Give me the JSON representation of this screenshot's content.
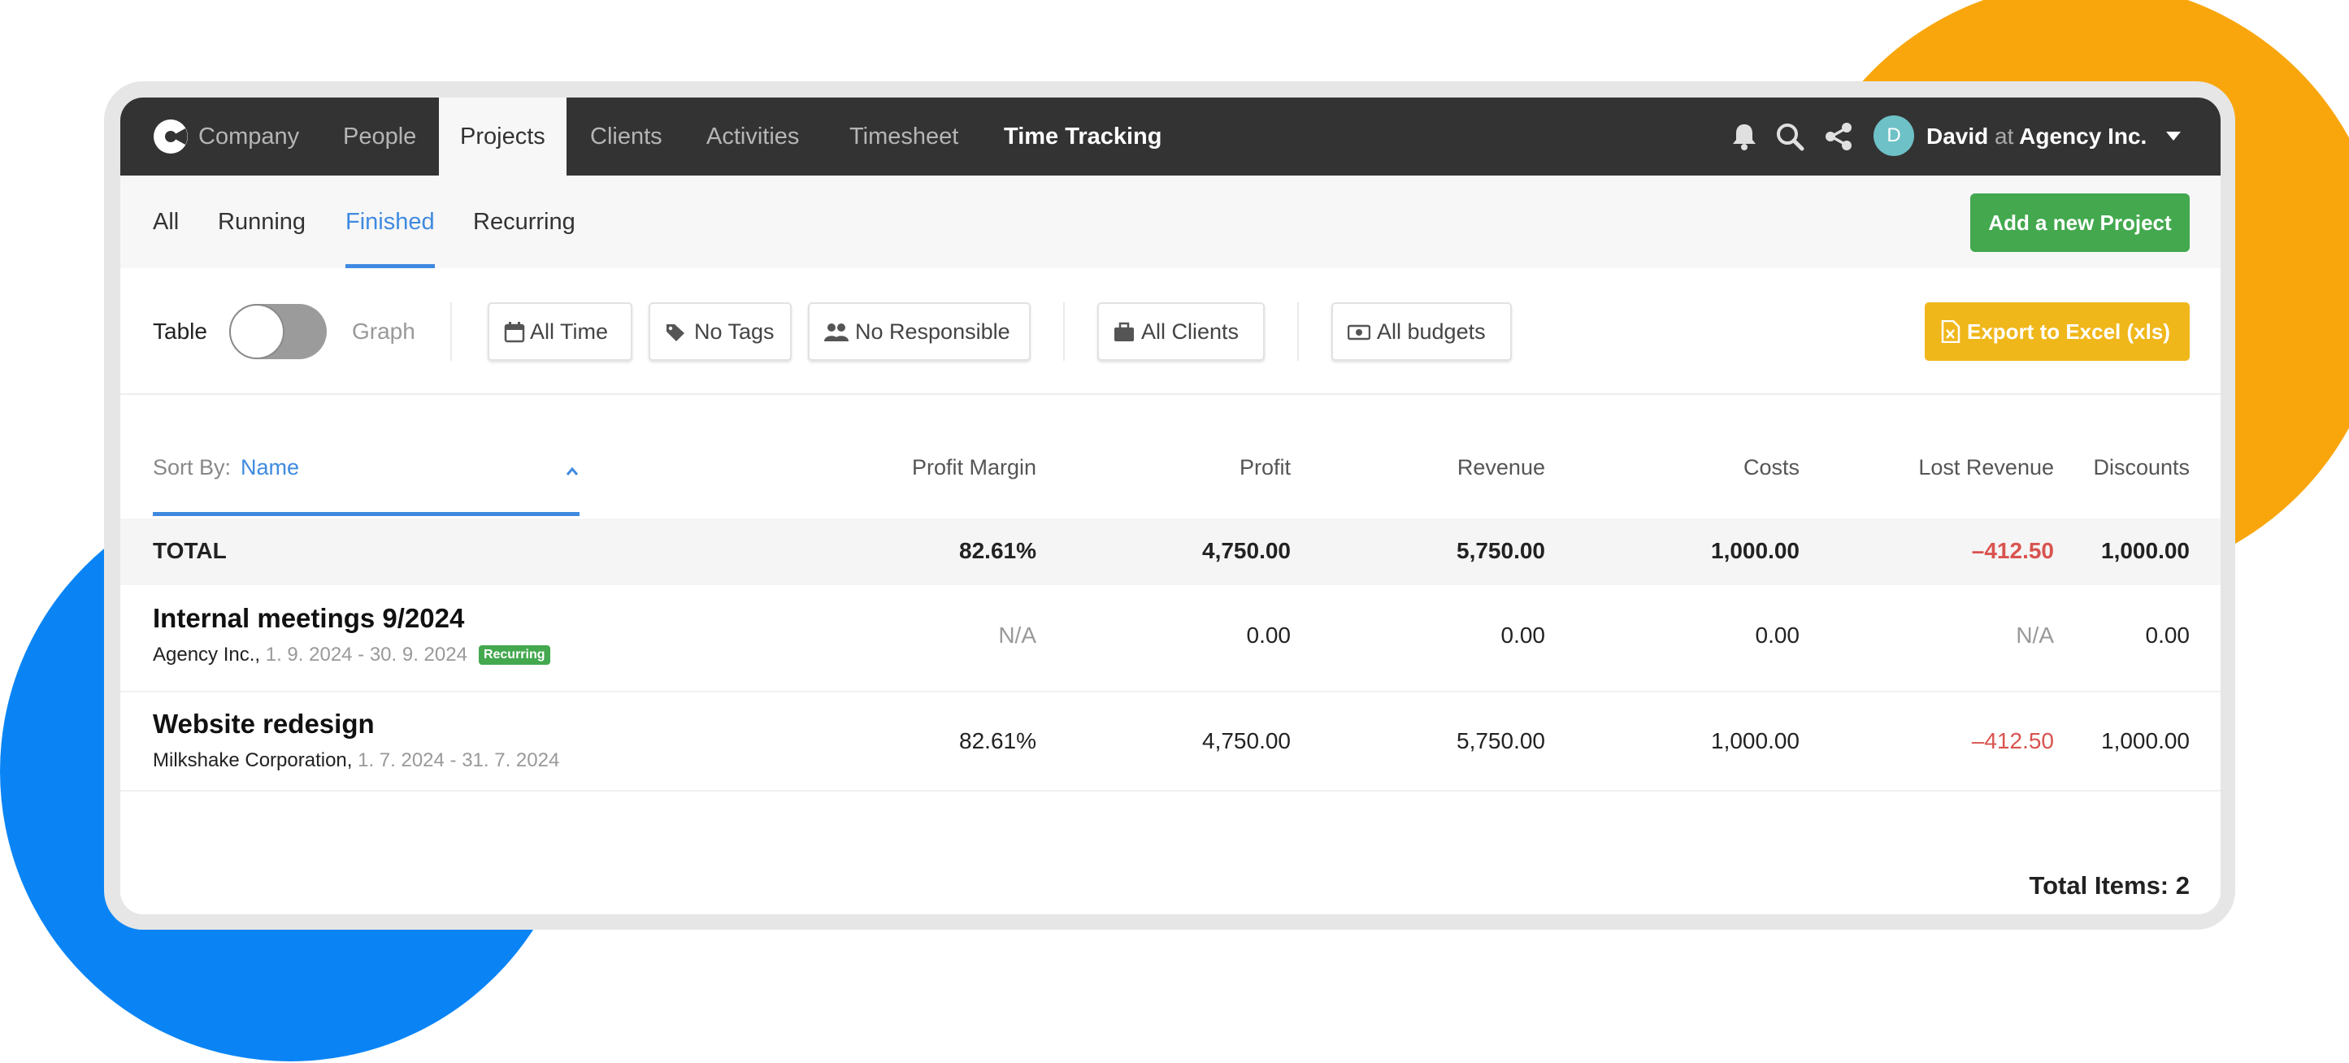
{
  "nav": {
    "items": [
      "Company",
      "People",
      "Projects",
      "Clients",
      "Activities",
      "Timesheet",
      "Time Tracking"
    ],
    "active": "Projects",
    "user": {
      "initial": "D",
      "name": "David",
      "at": "at",
      "org": "Agency Inc."
    }
  },
  "tabs": {
    "items": [
      "All",
      "Running",
      "Finished",
      "Recurring"
    ],
    "active": "Finished",
    "add_button": "Add a new Project"
  },
  "filters": {
    "view_left": "Table",
    "view_right": "Graph",
    "time": "All Time",
    "tags": "No Tags",
    "responsible": "No Responsible",
    "clients": "All Clients",
    "budgets": "All budgets",
    "export": "Export to Excel (xls)"
  },
  "table": {
    "sort_label": "Sort By:",
    "sort_value": "Name",
    "columns": [
      "Profit Margin",
      "Profit",
      "Revenue",
      "Costs",
      "Lost Revenue",
      "Discounts"
    ],
    "total": {
      "label": "TOTAL",
      "values": [
        "82.61%",
        "4,750.00",
        "5,750.00",
        "1,000.00",
        "–412.50",
        "1,000.00"
      ]
    },
    "rows": [
      {
        "name": "Internal meetings 9/2024",
        "client": "Agency Inc.,",
        "dates": "1. 9. 2024 - 30. 9. 2024",
        "badge": "Recurring",
        "values": [
          "N/A",
          "0.00",
          "0.00",
          "0.00",
          "N/A",
          "0.00"
        ]
      },
      {
        "name": "Website redesign",
        "client": "Milkshake Corporation,",
        "dates": "1. 7. 2024 - 31. 7. 2024",
        "badge": "",
        "values": [
          "82.61%",
          "4,750.00",
          "5,750.00",
          "1,000.00",
          "–412.50",
          "1,000.00"
        ]
      }
    ],
    "total_items": "Total Items: 2"
  },
  "colors": {
    "accent": "#3f8ae0",
    "green": "#43a84e",
    "yellow": "#f0b71b",
    "negative": "#d9534f",
    "nav_bg": "#333333",
    "bg_orange": "#f9a60d",
    "bg_blue": "#0a84f5"
  }
}
